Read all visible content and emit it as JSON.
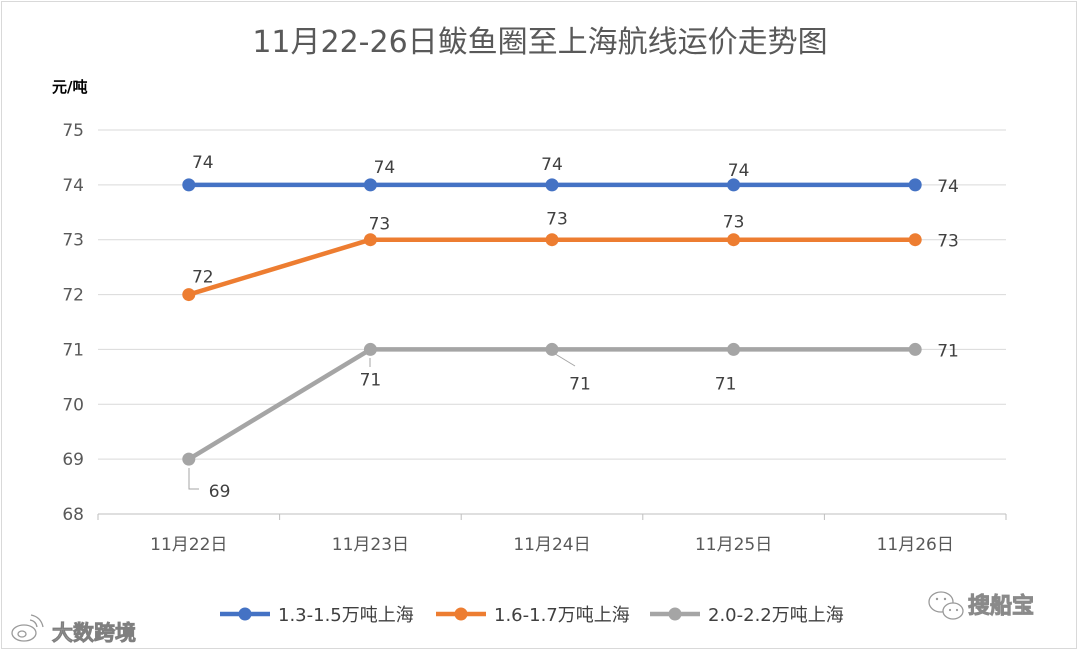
{
  "chart_data": {
    "type": "line",
    "title": "11月22-26日鲅鱼圈至上海航线运价走势图",
    "ylabel": "元/吨",
    "xlabel": "",
    "ylim": [
      68,
      75
    ],
    "yticks": [
      "68",
      "69",
      "70",
      "71",
      "72",
      "73",
      "74",
      "75"
    ],
    "categories": [
      "11月22日",
      "11月23日",
      "11月24日",
      "11月25日",
      "11月26日"
    ],
    "grid": true,
    "legend_position": "bottom",
    "series": [
      {
        "name": "1.3-1.5万吨上海",
        "color": "#4472c4",
        "values": [
          74,
          74,
          74,
          74,
          74
        ]
      },
      {
        "name": "1.6-1.7万吨上海",
        "color": "#ed7d31",
        "values": [
          72,
          73,
          73,
          73,
          73
        ]
      },
      {
        "name": "2.0-2.2万吨上海",
        "color": "#a5a5a5",
        "values": [
          69,
          71,
          71,
          71,
          71
        ]
      }
    ]
  },
  "watermarks": {
    "left": "大数跨境",
    "right": "搜船宝"
  }
}
